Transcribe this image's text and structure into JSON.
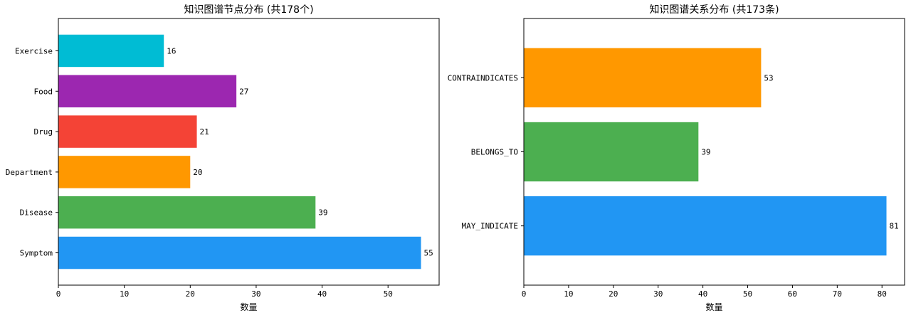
{
  "chart_data": [
    {
      "type": "bar",
      "orientation": "horizontal",
      "title": "知识图谱节点分布 (共178个)",
      "xlabel": "数量",
      "ylabel": "",
      "categories": [
        "Symptom",
        "Disease",
        "Department",
        "Drug",
        "Food",
        "Exercise"
      ],
      "values": [
        55,
        39,
        20,
        21,
        27,
        16
      ],
      "colors": [
        "#2196f3",
        "#4caf50",
        "#ff9800",
        "#f44336",
        "#9c27b0",
        "#00bcd4"
      ],
      "xlim": [
        0,
        57.75
      ],
      "xticks": [
        0,
        10,
        20,
        30,
        40,
        50
      ],
      "grid": false,
      "legend": "none"
    },
    {
      "type": "bar",
      "orientation": "horizontal",
      "title": "知识图谱关系分布 (共173条)",
      "xlabel": "数量",
      "ylabel": "",
      "categories": [
        "MAY_INDICATE",
        "BELONGS_TO",
        "CONTRAINDICATES"
      ],
      "values": [
        81,
        39,
        53
      ],
      "colors": [
        "#2196f3",
        "#4caf50",
        "#ff9800"
      ],
      "xlim": [
        0,
        85.05
      ],
      "xticks": [
        0,
        10,
        20,
        30,
        40,
        50,
        60,
        70,
        80
      ],
      "grid": false,
      "legend": "none"
    }
  ]
}
